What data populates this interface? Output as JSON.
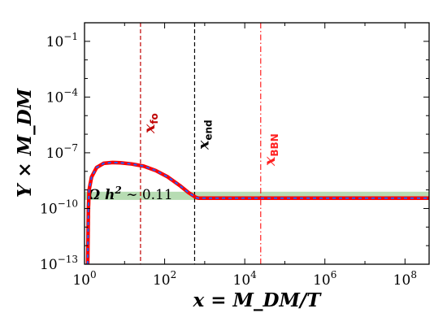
{
  "chart_data": {
    "type": "line",
    "title": "",
    "xlabel": "x = M_DM/T",
    "ylabel": "Y × M_DM",
    "xscale": "log",
    "yscale": "log",
    "xlim": [
      1,
      400000000.0
    ],
    "ylim": [
      1e-13,
      1
    ],
    "x_ticks": [
      {
        "value": 1,
        "base": "10",
        "exp": "0"
      },
      {
        "value": 100,
        "base": "10",
        "exp": "2"
      },
      {
        "value": 10000,
        "base": "10",
        "exp": "4"
      },
      {
        "value": 1000000,
        "base": "10",
        "exp": "6"
      },
      {
        "value": 100000000,
        "base": "10",
        "exp": "8"
      }
    ],
    "y_ticks": [
      {
        "value": 1e-13,
        "base": "10",
        "exp": "−13"
      },
      {
        "value": 1e-10,
        "base": "10",
        "exp": "−10"
      },
      {
        "value": 1e-07,
        "base": "10",
        "exp": "−7"
      },
      {
        "value": 0.0001,
        "base": "10",
        "exp": "−4"
      },
      {
        "value": 0.1,
        "base": "10",
        "exp": "−1"
      }
    ],
    "grid": false,
    "series": [
      {
        "color": "#ff0000",
        "overlay_color": "#1f5fff",
        "style": "solid red with dashed blue overlay",
        "points": [
          [
            1.2,
            1e-13
          ],
          [
            1.25,
            1e-10
          ],
          [
            1.3,
            1e-09
          ],
          [
            1.5,
            5e-09
          ],
          [
            2,
            1.6e-08
          ],
          [
            3,
            2.7e-08
          ],
          [
            5,
            3e-08
          ],
          [
            8,
            2.9e-08
          ],
          [
            15,
            2.5e-08
          ],
          [
            30,
            1.9e-08
          ],
          [
            60,
            1.1e-08
          ],
          [
            120,
            5e-09
          ],
          [
            250,
            1.6e-09
          ],
          [
            400,
            7e-10
          ],
          [
            600,
            4e-10
          ],
          [
            700,
            3.6e-10
          ],
          [
            1000,
            3.6e-10
          ],
          [
            100000.0,
            3.6e-10
          ],
          [
            10000000.0,
            3.6e-10
          ],
          [
            400000000.0,
            3.6e-10
          ]
        ]
      }
    ],
    "band": {
      "label_main": "Ω h",
      "label_exp": "2",
      "label_rest": " ∼ 0.11",
      "y_low": 2.9e-10,
      "y_high": 8e-10,
      "color": "#b7dcb3"
    },
    "vlines": [
      {
        "x": 25,
        "color": "#c00000",
        "style": "dashed",
        "label_main": "x",
        "label_sub": "fo"
      },
      {
        "x": 560,
        "color": "#000000",
        "style": "dashed",
        "label_main": "x",
        "label_sub": "end"
      },
      {
        "x": 25000,
        "color": "#ff2020",
        "style": "dashdot",
        "label_main": "x",
        "label_sub": "BBN"
      }
    ]
  }
}
